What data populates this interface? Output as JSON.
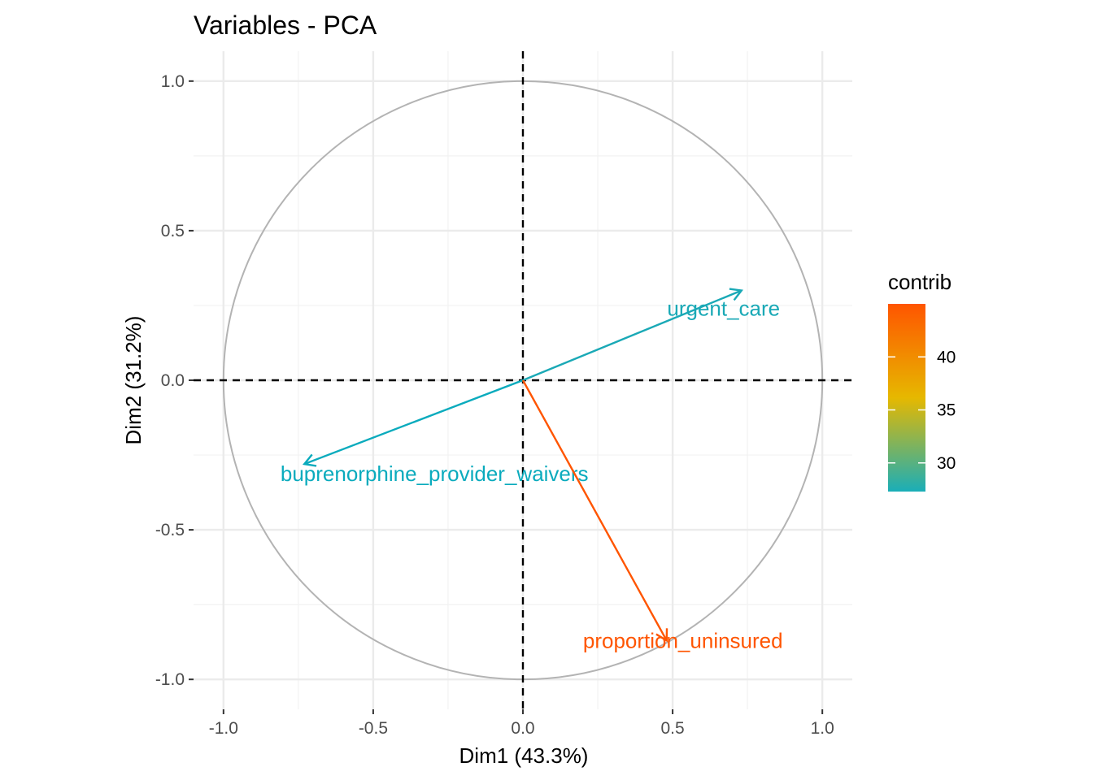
{
  "chart_data": {
    "type": "scatter",
    "subtype": "pca-variables-correlation-circle",
    "title": "Variables - PCA",
    "xlabel": "Dim1 (43.3%)",
    "ylabel": "Dim2 (31.2%)",
    "xlim": [
      -1.1,
      1.1
    ],
    "ylim": [
      -1.1,
      1.1
    ],
    "x_ticks": [
      -1.0,
      -0.5,
      0.0,
      0.5,
      1.0
    ],
    "x_tick_labels": [
      "-1.0",
      "-0.5",
      "0.0",
      "0.5",
      "1.0"
    ],
    "y_ticks": [
      -1.0,
      -0.5,
      0.0,
      0.5,
      1.0
    ],
    "y_tick_labels": [
      "-1.0",
      "-0.5",
      "0.0",
      "0.5",
      "1.0"
    ],
    "grid": true,
    "unit_circle": true,
    "reference_lines": [
      {
        "axis": "x",
        "value": 0,
        "style": "dashed"
      },
      {
        "axis": "y",
        "value": 0,
        "style": "dashed"
      }
    ],
    "variables": [
      {
        "name": "urgent_care",
        "x": 0.73,
        "y": 0.3,
        "contrib": 27.5,
        "color": "#1aa9b6"
      },
      {
        "name": "buprenorphine_provider_waivers",
        "x": -0.73,
        "y": -0.28,
        "contrib": 27.5,
        "color": "#0aabbd"
      },
      {
        "name": "proportion_uninsured",
        "x": 0.48,
        "y": -0.87,
        "contrib": 45.0,
        "color": "#ff5500"
      }
    ],
    "legend": {
      "title": "contrib",
      "position": "right",
      "range": [
        27.3,
        45.0
      ],
      "ticks": [
        30,
        35,
        40
      ],
      "tick_labels": [
        "30",
        "35",
        "40"
      ],
      "gradient": [
        "#1aaeb8",
        "#e6b800",
        "#ff5500"
      ]
    }
  }
}
